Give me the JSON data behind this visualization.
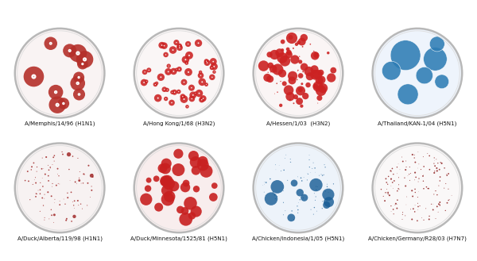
{
  "figure_width": 6.0,
  "figure_height": 3.29,
  "dpi": 100,
  "background_color": "#ffffff",
  "dishes": [
    {
      "label": "A/Memphis/14/96 (H1N1)",
      "row": 0,
      "col": 0,
      "dish_bg": "#f9f3f3",
      "dish_edge": "#b8b8b8",
      "plaque_color": "#b5302a",
      "plaque_style": "donut_large",
      "num_large": 12,
      "num_small": 0,
      "seed": 42
    },
    {
      "label": "A/Hong Kong/1/68 (H3N2)",
      "row": 0,
      "col": 1,
      "dish_bg": "#faf6f6",
      "dish_edge": "#b8b8b8",
      "plaque_color": "#cc2222",
      "plaque_style": "donut_small",
      "num_large": 55,
      "num_small": 0,
      "seed": 7
    },
    {
      "label": "A/Hessen/1/03  (H3N2)",
      "row": 0,
      "col": 2,
      "dish_bg": "#faf5f5",
      "dish_edge": "#b8b8b8",
      "plaque_color": "#cc2222",
      "plaque_style": "solid_dense",
      "num_large": 60,
      "num_small": 30,
      "seed": 13
    },
    {
      "label": "A/Thailand/KAN-1/04 (H5N1)",
      "row": 0,
      "col": 3,
      "dish_bg": "#eef4fc",
      "dish_edge": "#b8b8b8",
      "plaque_color": "#2e7db5",
      "plaque_style": "blue_large",
      "num_large": 7,
      "num_small": 0,
      "seed": 99
    },
    {
      "label": "A/Duck/Alberta/119/98 (H1N1)",
      "row": 1,
      "col": 0,
      "dish_bg": "#f7f2f2",
      "dish_edge": "#b8b8b8",
      "plaque_color": "#9b1c1c",
      "plaque_style": "tiny_dots",
      "num_large": 5,
      "num_small": 100,
      "seed": 21
    },
    {
      "label": "A/Duck/Minnesota/1525/81 (H5N1)",
      "row": 1,
      "col": 1,
      "dish_bg": "#f8eded",
      "dish_edge": "#b8b8b8",
      "plaque_color": "#c82020",
      "plaque_style": "solid_medium",
      "num_large": 35,
      "num_small": 0,
      "seed": 55
    },
    {
      "label": "A/Chicken/Indonesia/1/05 (H5N1)",
      "row": 1,
      "col": 2,
      "dish_bg": "#edf3fa",
      "dish_edge": "#b8b8b8",
      "plaque_color": "#1a5e96",
      "plaque_style": "blue_mixed",
      "num_large": 10,
      "num_small": 80,
      "seed": 33
    },
    {
      "label": "A/Chicken/Germany/R28/03 (H7N7)",
      "row": 1,
      "col": 3,
      "dish_bg": "#faf8f8",
      "dish_edge": "#b8b8b8",
      "plaque_color": "#8b1a1a",
      "plaque_style": "tiny_red",
      "num_large": 0,
      "num_small": 150,
      "seed": 66
    }
  ],
  "label_fontsize": 5.0,
  "label_color": "#111111"
}
